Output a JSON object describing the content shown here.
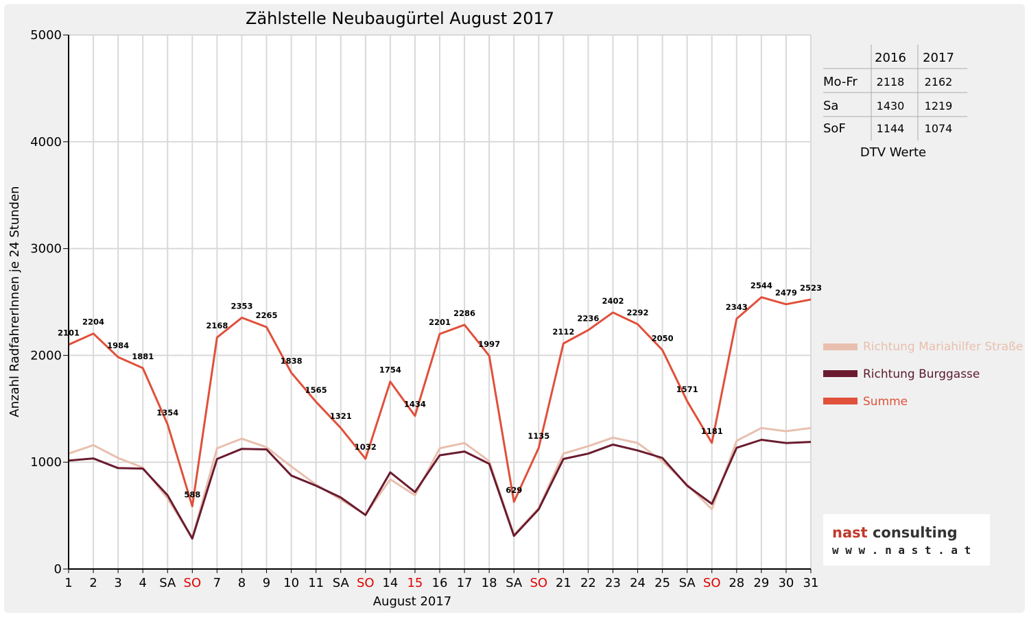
{
  "chart_data": {
    "type": "line",
    "title": "Zählstelle Neubaugürtel August 2017",
    "xlabel": "August 2017",
    "ylabel": "Anzahl RadfahrerInnen je 24 Stunden",
    "ylim": [
      0,
      5000
    ],
    "yticks": [
      "0",
      "1000",
      "2000",
      "3000",
      "4000",
      "5000"
    ],
    "grid": true,
    "legend_position": "right",
    "categories": [
      "1",
      "2",
      "3",
      "4",
      "SA",
      "SO",
      "7",
      "8",
      "9",
      "10",
      "11",
      "SA",
      "SO",
      "14",
      "15",
      "16",
      "17",
      "18",
      "SA",
      "SO",
      "21",
      "22",
      "23",
      "24",
      "25",
      "SA",
      "SO",
      "28",
      "29",
      "30",
      "31"
    ],
    "highlight_categories": [
      5,
      12,
      14,
      19,
      26
    ],
    "highlight_color": "#e00000",
    "series": [
      {
        "name": "Richtung Mariahilfer Straße",
        "color": "#e8bfae",
        "values": [
          1080,
          1160,
          1040,
          950,
          660,
          290,
          1130,
          1220,
          1140,
          960,
          790,
          650,
          510,
          840,
          690,
          1130,
          1180,
          1010,
          320,
          570,
          1080,
          1150,
          1230,
          1180,
          1010,
          790,
          560,
          1200,
          1320,
          1290,
          1320
        ]
      },
      {
        "name": "Richtung Burggasse",
        "color": "#6a1b2f",
        "values": [
          1015,
          1035,
          945,
          940,
          690,
          285,
          1030,
          1125,
          1120,
          875,
          780,
          670,
          505,
          905,
          720,
          1065,
          1100,
          985,
          310,
          560,
          1030,
          1080,
          1165,
          1110,
          1040,
          780,
          610,
          1135,
          1210,
          1180,
          1190
        ]
      },
      {
        "name": "Summe",
        "color": "#e0503a",
        "values": [
          2101,
          2204,
          1984,
          1881,
          1354,
          588,
          2168,
          2353,
          2265,
          1838,
          1565,
          1321,
          1032,
          1754,
          1434,
          2201,
          2286,
          1997,
          629,
          1135,
          2112,
          2236,
          2402,
          2292,
          2050,
          1571,
          1181,
          2343,
          2544,
          2479,
          2523
        ],
        "labels": [
          "2101",
          "2204",
          "1984",
          "1881",
          "1354",
          "588",
          "2168",
          "2353",
          "2265",
          "1838",
          "1565",
          "1321",
          "1032",
          "1754",
          "1434",
          "2201",
          "2286",
          "1997",
          "629",
          "1135",
          "2112",
          "2236",
          "2402",
          "2292",
          "2050",
          "1571",
          "1181",
          "2343",
          "2544",
          "2479",
          "2523"
        ]
      }
    ]
  },
  "dtv_table": {
    "caption": "DTV Werte",
    "columns": [
      "2016",
      "2017"
    ],
    "rows": [
      {
        "label": "Mo-Fr",
        "values": [
          "2118",
          "2162"
        ]
      },
      {
        "label": "Sa",
        "values": [
          "1430",
          "1219"
        ]
      },
      {
        "label": "SoF",
        "values": [
          "1144",
          "1074"
        ]
      }
    ]
  },
  "logo": {
    "name": "nast consulting",
    "url": "w w w . n a s t . a t"
  }
}
